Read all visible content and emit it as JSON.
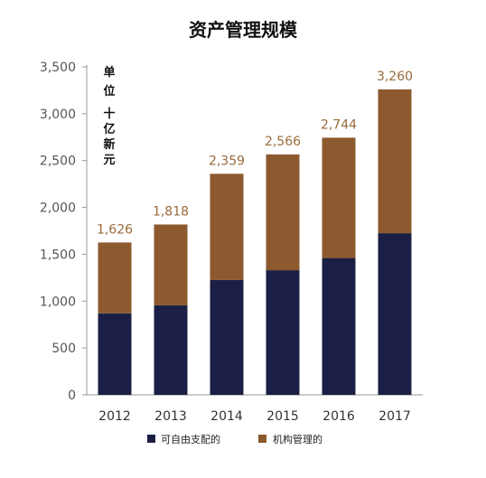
{
  "chart_data": {
    "type": "bar",
    "stacked": true,
    "title": "资产管理规模",
    "unit_label": [
      "单",
      "位",
      "十",
      "亿",
      "新",
      "元"
    ],
    "categories": [
      "2012",
      "2013",
      "2014",
      "2015",
      "2016",
      "2017"
    ],
    "series": [
      {
        "name": "可自由支配的",
        "color": "#1c1f45",
        "values": [
          870,
          955,
          1225,
          1330,
          1460,
          1725
        ]
      },
      {
        "name": "机构管理的",
        "color": "#8c5a2e",
        "values": [
          756,
          863,
          1134,
          1236,
          1284,
          1535
        ]
      }
    ],
    "totals": [
      "1,626",
      "1,818",
      "2,359",
      "2,566",
      "2,744",
      "3,260"
    ],
    "total_values": [
      1626,
      1818,
      2359,
      2566,
      2744,
      3260
    ],
    "yticks": [
      "0",
      "500",
      "1,000",
      "1,500",
      "2,000",
      "2,500",
      "3,000",
      "3,500"
    ],
    "ylim": [
      0,
      3500
    ],
    "grid": false,
    "legend_position": "bottom",
    "colors": {
      "total_label": "#9a6a3c",
      "axis": "#999999",
      "tick_label": "#555555",
      "title": "#111111"
    }
  }
}
